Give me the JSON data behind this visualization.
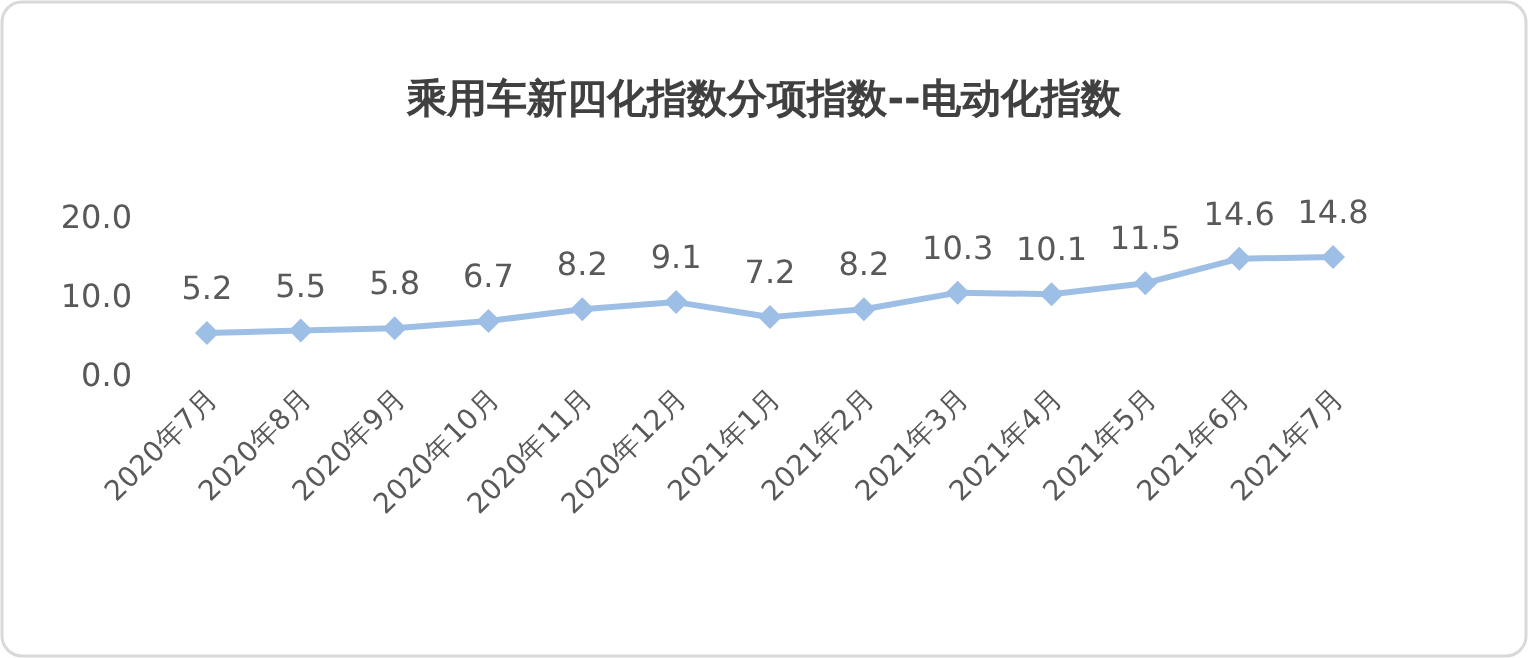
{
  "chart_data": {
    "type": "line",
    "title": "乘用车新四化指数分项指数--电动化指数",
    "categories": [
      "2020年7月",
      "2020年8月",
      "2020年9月",
      "2020年10月",
      "2020年11月",
      "2020年12月",
      "2021年1月",
      "2021年2月",
      "2021年3月",
      "2021年4月",
      "2021年5月",
      "2021年6月",
      "2021年7月"
    ],
    "values": [
      5.2,
      5.5,
      5.8,
      6.7,
      8.2,
      9.1,
      7.2,
      8.2,
      10.3,
      10.1,
      11.5,
      14.6,
      14.8
    ],
    "color": "#9dbfe6",
    "ylim": [
      0,
      20
    ],
    "yticks": [
      {
        "value": 0,
        "label": "0.0"
      },
      {
        "value": 10,
        "label": "10.0"
      },
      {
        "value": 20,
        "label": "20.0"
      }
    ],
    "data_labels": true,
    "marker": "diamond",
    "grid": false
  }
}
